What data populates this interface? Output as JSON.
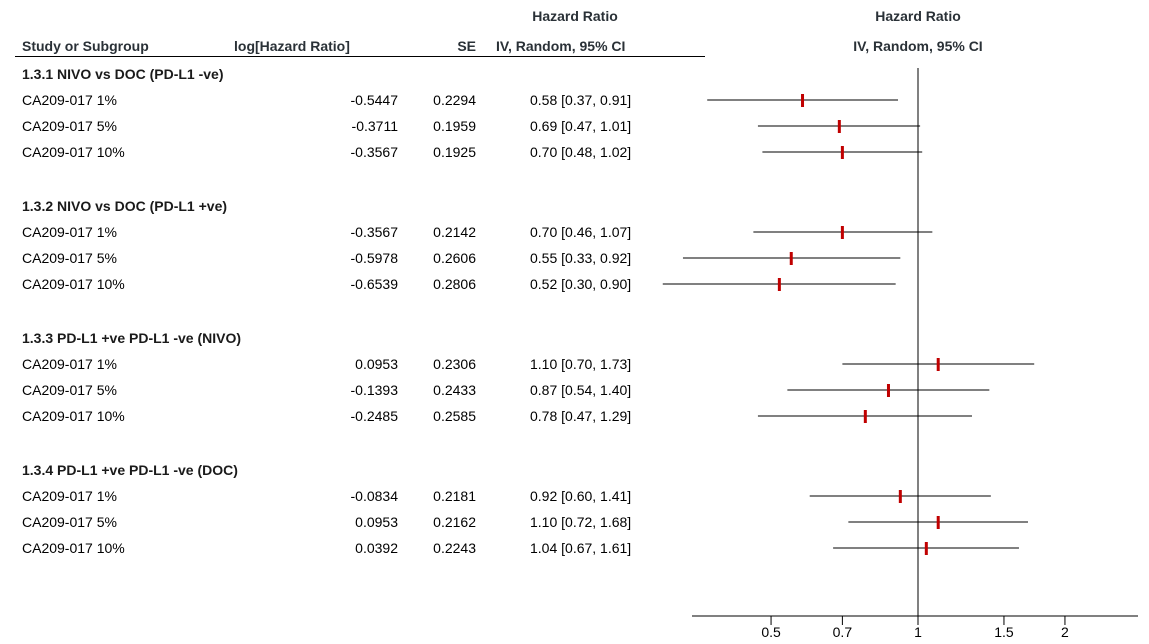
{
  "header": {
    "col_study": "Study or Subgroup",
    "col_loghr": "log[Hazard Ratio]",
    "col_se": "SE",
    "col_hr_top": "Hazard Ratio",
    "col_hr_bottom": "IV, Random, 95% CI",
    "plot_top": "Hazard Ratio",
    "plot_bottom": "IV, Random, 95% CI"
  },
  "groups": [
    {
      "title": "1.3.1 NIVO vs DOC (PD-L1 -ve)",
      "rows": [
        {
          "study": "CA209-017 1%",
          "loghr": "-0.5447",
          "se": "0.2294",
          "ci": "0.58 [0.37, 0.91]"
        },
        {
          "study": "CA209-017 5%",
          "loghr": "-0.3711",
          "se": "0.1959",
          "ci": "0.69 [0.47, 1.01]"
        },
        {
          "study": "CA209-017 10%",
          "loghr": "-0.3567",
          "se": "0.1925",
          "ci": "0.70 [0.48, 1.02]"
        }
      ]
    },
    {
      "title": "1.3.2 NIVO vs DOC (PD-L1 +ve)",
      "rows": [
        {
          "study": "CA209-017 1%",
          "loghr": "-0.3567",
          "se": "0.2142",
          "ci": "0.70 [0.46, 1.07]"
        },
        {
          "study": "CA209-017 5%",
          "loghr": "-0.5978",
          "se": "0.2606",
          "ci": "0.55 [0.33, 0.92]"
        },
        {
          "study": "CA209-017 10%",
          "loghr": "-0.6539",
          "se": "0.2806",
          "ci": "0.52 [0.30, 0.90]"
        }
      ]
    },
    {
      "title": "1.3.3 PD-L1 +ve PD-L1 -ve (NIVO)",
      "rows": [
        {
          "study": "CA209-017 1%",
          "loghr": "0.0953",
          "se": "0.2306",
          "ci": "1.10 [0.70, 1.73]"
        },
        {
          "study": "CA209-017 5%",
          "loghr": "-0.1393",
          "se": "0.2433",
          "ci": "0.87 [0.54, 1.40]"
        },
        {
          "study": "CA209-017 10%",
          "loghr": "-0.2485",
          "se": "0.2585",
          "ci": "0.78 [0.47, 1.29]"
        }
      ]
    },
    {
      "title": "1.3.4 PD-L1 +ve PD-L1 -ve (DOC)",
      "rows": [
        {
          "study": "CA209-017 1%",
          "loghr": "-0.0834",
          "se": "0.2181",
          "ci": "0.92 [0.60, 1.41]"
        },
        {
          "study": "CA209-017 5%",
          "loghr": "0.0953",
          "se": "0.2162",
          "ci": "1.10 [0.72, 1.68]"
        },
        {
          "study": "CA209-017 10%",
          "loghr": "0.0392",
          "se": "0.2243",
          "ci": "1.04 [0.67, 1.61]"
        }
      ]
    }
  ],
  "chart_data": {
    "type": "forest",
    "scale": "log",
    "x_ticks": [
      0.5,
      0.7,
      1,
      1.5,
      2
    ],
    "x_tick_labels": [
      "0.5",
      "0.7",
      "1",
      "1.5",
      "2"
    ],
    "null_line": 1,
    "marker_color": "#c00000",
    "points": [
      {
        "hr": 0.58,
        "lo": 0.37,
        "hi": 0.91
      },
      {
        "hr": 0.69,
        "lo": 0.47,
        "hi": 1.01
      },
      {
        "hr": 0.7,
        "lo": 0.48,
        "hi": 1.02
      },
      {
        "hr": 0.7,
        "lo": 0.46,
        "hi": 1.07
      },
      {
        "hr": 0.55,
        "lo": 0.33,
        "hi": 0.92
      },
      {
        "hr": 0.52,
        "lo": 0.3,
        "hi": 0.9
      },
      {
        "hr": 1.1,
        "lo": 0.7,
        "hi": 1.73
      },
      {
        "hr": 0.87,
        "lo": 0.54,
        "hi": 1.4
      },
      {
        "hr": 0.78,
        "lo": 0.47,
        "hi": 1.29
      },
      {
        "hr": 0.92,
        "lo": 0.6,
        "hi": 1.41
      },
      {
        "hr": 1.1,
        "lo": 0.72,
        "hi": 1.68
      },
      {
        "hr": 1.04,
        "lo": 0.67,
        "hi": 1.61
      }
    ]
  }
}
